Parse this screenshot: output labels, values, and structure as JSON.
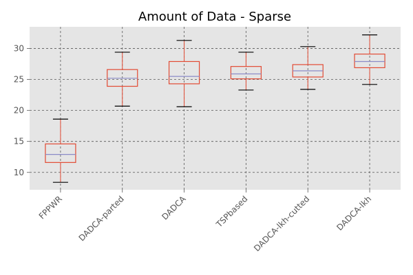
{
  "chart_data": {
    "type": "box",
    "title": "Amount of Data - Sparse",
    "xlabel": "",
    "ylabel": "",
    "ylim": [
      7.2,
      33.5
    ],
    "yticks": [
      10,
      15,
      20,
      25,
      30
    ],
    "grid": true,
    "categories": [
      "FPPWR",
      "DADCA-parted",
      "DADCA",
      "TSPbased",
      "DADCA-lkh-cutted",
      "DADCA-lkh"
    ],
    "boxes": [
      {
        "whisker_low": 8.4,
        "q1": 11.6,
        "median": 12.9,
        "q3": 14.6,
        "whisker_high": 18.6
      },
      {
        "whisker_low": 20.7,
        "q1": 23.9,
        "median": 25.2,
        "q3": 26.6,
        "whisker_high": 29.4
      },
      {
        "whisker_low": 20.6,
        "q1": 24.3,
        "median": 25.5,
        "q3": 27.9,
        "whisker_high": 31.3
      },
      {
        "whisker_low": 23.3,
        "q1": 25.1,
        "median": 25.9,
        "q3": 27.1,
        "whisker_high": 29.4
      },
      {
        "whisker_low": 23.4,
        "q1": 25.4,
        "median": 26.4,
        "q3": 27.4,
        "whisker_high": 30.3
      },
      {
        "whisker_low": 24.2,
        "q1": 26.9,
        "median": 27.9,
        "q3": 29.1,
        "whisker_high": 32.2
      }
    ],
    "colors": {
      "background": "#e5e5e5",
      "box": "#e24a33",
      "median": "#8b8bc7",
      "cap": "#000000",
      "grid": "#555555"
    }
  }
}
